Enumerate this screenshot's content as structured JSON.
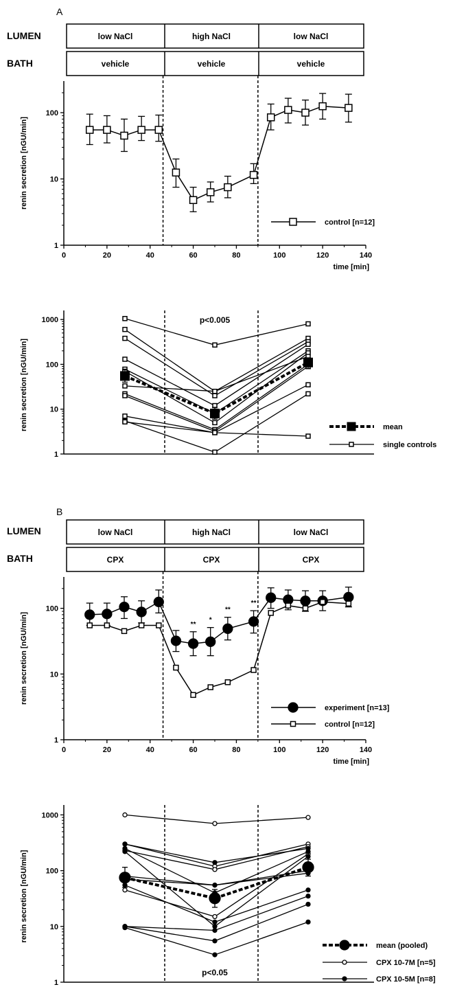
{
  "panel_A": {
    "label": "A",
    "lumen_label": "LUMEN",
    "bath_label": "BATH",
    "lumen_conditions": [
      "low NaCl",
      "high NaCl",
      "low NaCl"
    ],
    "bath_conditions": [
      "vehicle",
      "vehicle",
      "vehicle"
    ]
  },
  "panel_B": {
    "label": "B",
    "lumen_label": "LUMEN",
    "bath_label": "BATH",
    "lumen_conditions": [
      "low NaCl",
      "high NaCl",
      "low NaCl"
    ],
    "bath_conditions": [
      "CPX",
      "CPX",
      "CPX"
    ]
  },
  "chart_data": [
    {
      "id": "A-timecourse",
      "type": "line",
      "ylabel": "renin  secretion  [nGU/min]",
      "xlabel": "time [min]",
      "yscale": "log",
      "xlim": [
        0,
        140
      ],
      "ylim": [
        1,
        300
      ],
      "x_ticks": [
        "0",
        "20",
        "40",
        "60",
        "80",
        "100",
        "120",
        "140"
      ],
      "y_ticks": [
        "1",
        "10",
        "100"
      ],
      "condition_boundaries_min": [
        46,
        90
      ],
      "series": [
        {
          "name": "control [n=12]",
          "marker": "open-square",
          "x": [
            12,
            20,
            28,
            36,
            44,
            52,
            60,
            68,
            76,
            88,
            96,
            104,
            112,
            120,
            132
          ],
          "y": [
            55,
            55,
            45,
            55,
            55,
            12.5,
            4.8,
            6.3,
            7.5,
            11.5,
            85,
            110,
            100,
            125,
            118
          ],
          "err_low": [
            33,
            35,
            26,
            38,
            37,
            7.5,
            3.2,
            4.5,
            5.2,
            8.5,
            55,
            70,
            65,
            80,
            72
          ],
          "err_high": [
            95,
            90,
            80,
            88,
            92,
            20,
            7.5,
            9,
            11,
            17,
            135,
            165,
            155,
            195,
            190
          ]
        }
      ]
    },
    {
      "id": "A-individual",
      "type": "line",
      "ylabel": "renin  secretion  [nGU/min]",
      "yscale": "log",
      "ylim": [
        1,
        1200
      ],
      "y_ticks": [
        "1",
        "10",
        "100",
        "1000"
      ],
      "annotation": "p<0.005",
      "phases": [
        "low NaCl",
        "high NaCl",
        "low NaCl"
      ],
      "single_controls_name": "single controls",
      "mean_name": "mean",
      "mean": {
        "y": [
          55,
          8,
          110
        ],
        "err_low": [
          40,
          6,
          80
        ],
        "err_high": [
          75,
          11,
          140
        ]
      },
      "singles": [
        [
          1050,
          270,
          800
        ],
        [
          600,
          25,
          380
        ],
        [
          380,
          20,
          320
        ],
        [
          130,
          12,
          280
        ],
        [
          78,
          8,
          200
        ],
        [
          70,
          5,
          180
        ],
        [
          33,
          25,
          150
        ],
        [
          22,
          3.5,
          100
        ],
        [
          20,
          3.2,
          90
        ],
        [
          7,
          3.0,
          35
        ],
        [
          5.5,
          1.1,
          22
        ],
        [
          5.2,
          3.0,
          2.5
        ]
      ]
    },
    {
      "id": "B-timecourse",
      "type": "line",
      "ylabel": "renin  secretion  [nGU/min]",
      "xlabel": "time [min]",
      "yscale": "log",
      "xlim": [
        0,
        140
      ],
      "ylim": [
        1,
        300
      ],
      "x_ticks": [
        "0",
        "20",
        "40",
        "60",
        "80",
        "100",
        "120",
        "140"
      ],
      "y_ticks": [
        "1",
        "10",
        "100"
      ],
      "condition_boundaries_min": [
        46,
        90
      ],
      "significance": [
        {
          "x": 60,
          "label": "**"
        },
        {
          "x": 68,
          "label": "*"
        },
        {
          "x": 76,
          "label": "**"
        },
        {
          "x": 88,
          "label": "**"
        }
      ],
      "series": [
        {
          "name": "experiment [n=13]",
          "marker": "filled-circle",
          "x": [
            12,
            20,
            28,
            36,
            44,
            52,
            60,
            68,
            76,
            88,
            96,
            104,
            112,
            120,
            132
          ],
          "y": [
            80,
            82,
            105,
            88,
            125,
            32,
            29,
            31,
            49,
            63,
            145,
            135,
            130,
            130,
            148
          ],
          "err_low": [
            55,
            55,
            70,
            60,
            85,
            22,
            19,
            19,
            33,
            42,
            100,
            95,
            90,
            92,
            105
          ],
          "err_high": [
            120,
            120,
            150,
            130,
            190,
            46,
            44,
            51,
            73,
            92,
            205,
            190,
            185,
            185,
            210
          ]
        },
        {
          "name": "control [n=12]",
          "marker": "open-square",
          "x": [
            12,
            20,
            28,
            36,
            44,
            52,
            60,
            68,
            76,
            88,
            96,
            104,
            112,
            120,
            132
          ],
          "y": [
            55,
            55,
            45,
            55,
            55,
            12.5,
            4.8,
            6.3,
            7.5,
            11.5,
            85,
            110,
            100,
            125,
            118
          ]
        }
      ]
    },
    {
      "id": "B-individual",
      "type": "line",
      "ylabel": "renin  secretion  [nGU/min]",
      "yscale": "log",
      "ylim": [
        1,
        1200
      ],
      "y_ticks": [
        "1",
        "10",
        "100",
        "1000"
      ],
      "annotation": "p<0.05",
      "phases": [
        "low NaCl",
        "high NaCl",
        "low NaCl"
      ],
      "mean_name": "mean (pooled)",
      "mean": {
        "y": [
          75,
          32,
          115
        ],
        "err_low": [
          50,
          22,
          80
        ],
        "err_high": [
          115,
          46,
          160
        ]
      },
      "series_open_name": "CPX 10-7M [n=5]",
      "series_filled_name": "CPX 10-5M [n=8]",
      "open": [
        [
          1000,
          700,
          900
        ],
        [
          300,
          120,
          300
        ],
        [
          230,
          105,
          270
        ],
        [
          80,
          55,
          100
        ],
        [
          45,
          15,
          200
        ]
      ],
      "filled": [
        [
          300,
          140,
          250
        ],
        [
          250,
          40,
          220
        ],
        [
          220,
          10,
          180
        ],
        [
          70,
          55,
          90
        ],
        [
          55,
          12,
          45
        ],
        [
          10,
          8.5,
          35
        ],
        [
          10,
          5.5,
          25
        ],
        [
          9.5,
          3.1,
          12
        ]
      ]
    }
  ]
}
